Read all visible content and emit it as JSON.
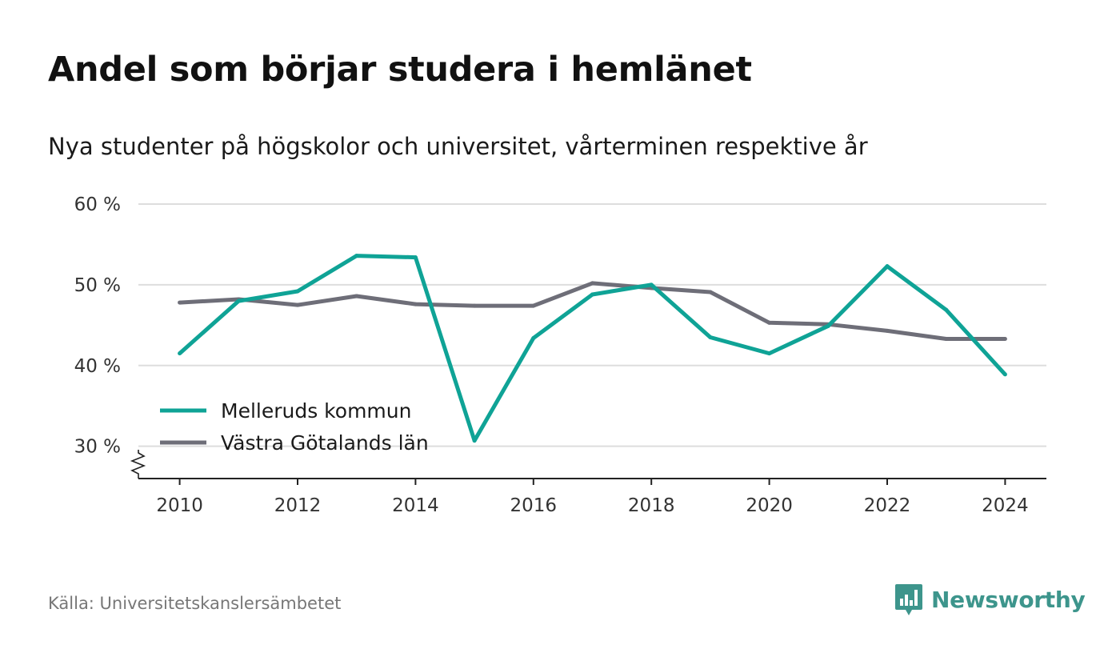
{
  "title": "Andel som börjar studera i hemlänet",
  "subtitle": "Nya studenter på högskolor och universitet, vårterminen respektive år",
  "source": "Källa: Universitetskanslersämbetet",
  "brand": {
    "name": "Newsworthy",
    "icon": "bar-chart-speech-bubble-icon",
    "color": "#3d958c"
  },
  "colors": {
    "grid": "#dddddd",
    "axis": "#222222"
  },
  "chart_data": {
    "type": "line",
    "y_tick_labels": [
      "30 %",
      "40 %",
      "50 %",
      "60 %"
    ],
    "y_ticks": [
      30,
      40,
      50,
      60
    ],
    "x_tick_labels": [
      "2010",
      "2012",
      "2014",
      "2016",
      "2018",
      "2020",
      "2022",
      "2024"
    ],
    "x_ticks": [
      2010,
      2012,
      2014,
      2016,
      2018,
      2020,
      2022,
      2024
    ],
    "xlim": [
      2009.3,
      2024.7
    ],
    "ylim": [
      26,
      60
    ],
    "y_axis_break": true,
    "grid": "horizontal",
    "legend_position": "bottom-left",
    "x": [
      2010,
      2011,
      2012,
      2013,
      2014,
      2015,
      2016,
      2017,
      2018,
      2019,
      2020,
      2021,
      2022,
      2023,
      2024
    ],
    "series": [
      {
        "name": "Melleruds kommun",
        "color": "#0fa396",
        "values": [
          41.5,
          48.0,
          49.2,
          53.6,
          53.4,
          30.7,
          43.4,
          48.8,
          50.0,
          43.5,
          41.5,
          44.9,
          52.3,
          46.9,
          38.9
        ]
      },
      {
        "name": "Västra Götalands län",
        "color": "#6e6e78",
        "values": [
          47.8,
          48.2,
          47.5,
          48.6,
          47.6,
          47.4,
          47.4,
          50.2,
          49.6,
          49.1,
          45.3,
          45.1,
          44.3,
          43.3,
          43.3
        ]
      }
    ]
  }
}
